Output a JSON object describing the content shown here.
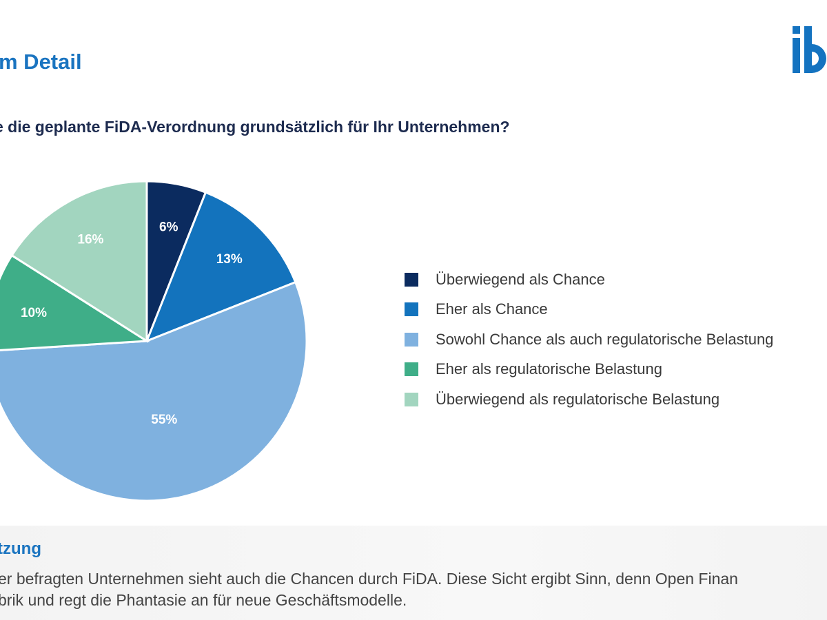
{
  "header": {
    "title": "m Detail",
    "logo_text": "ib"
  },
  "question": "e die geplante FiDA-Verordnung grundsätzlich für Ihr Unternehmen?",
  "chart_data": {
    "type": "pie",
    "start": "top, clockwise",
    "legend_position": "right",
    "series": [
      {
        "name": "Überwiegend als Chance",
        "value": 6,
        "label": "6%",
        "color": "#0b2b5f"
      },
      {
        "name": "Eher als Chance",
        "value": 13,
        "label": "13%",
        "color": "#1373bd"
      },
      {
        "name": "Sowohl Chance als auch regulatorische Belastung",
        "value": 55,
        "label": "55%",
        "color": "#7fb1df"
      },
      {
        "name": "Eher als regulatorische Belastung",
        "value": 10,
        "label": "10%",
        "color": "#3fae88"
      },
      {
        "name": "Überwiegend als regulatorische Belastung",
        "value": 16,
        "label": "16%",
        "color": "#a2d5bf"
      }
    ]
  },
  "panel": {
    "title": "tzung",
    "lines": [
      "er befragten Unternehmen sieht auch die Chancen durch FiDA. Diese Sicht ergibt Sinn, denn Open Finan",
      "brik und regt die Phantasie an für neue Geschäftsmodelle."
    ]
  }
}
